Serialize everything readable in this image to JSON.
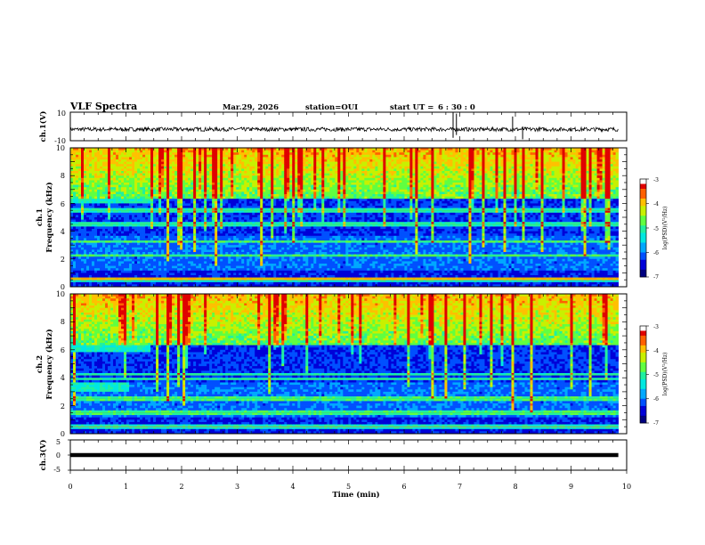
{
  "figure": {
    "title": "VLF Spectra",
    "date": "Mar.29, 2026",
    "station": "station=OUI",
    "start_label": "start  UT =",
    "start_time": "6 : 30 : 0"
  },
  "colors": {
    "background": "#ffffff",
    "axis": "#000000",
    "waveform": "#000000",
    "colormap": [
      "#000080",
      "#0000d8",
      "#0050ff",
      "#00a8ff",
      "#00e8e0",
      "#20f0a0",
      "#60ff40",
      "#c8f000",
      "#ffc000",
      "#ff6000",
      "#e00000",
      "#ffffff"
    ]
  },
  "chart_data": [
    {
      "type": "line",
      "name": "ch1-waveform",
      "ylabel": "ch.1(V)",
      "ylim": [
        -10,
        10
      ],
      "yticks": [
        "10",
        "-10"
      ],
      "xlim": [
        0,
        10
      ],
      "baseline": -2,
      "noise_amplitude": 1.4,
      "spikes": [
        {
          "t": 6.88,
          "lo": -8,
          "hi": 10
        },
        {
          "t": 6.94,
          "lo": -6,
          "hi": 9
        },
        {
          "t": 7.95,
          "lo": -4,
          "hi": 7
        },
        {
          "t": 8.13,
          "lo": -9,
          "hi": 0
        }
      ]
    },
    {
      "type": "heatmap",
      "name": "ch1-spectrogram",
      "ylabel_channel": "ch.1",
      "ylabel": "Frequency (kHz)",
      "ylim": [
        0,
        10
      ],
      "yticks": [
        "0",
        "2",
        "4",
        "6",
        "8",
        "10"
      ],
      "xlim": [
        0,
        9.85
      ],
      "value_label": "log(PSD)(V²/Hz)",
      "value_range": [
        -7,
        -3
      ],
      "colorbar_ticks": [
        "-3",
        "-4",
        "-5",
        "-6",
        "-7"
      ],
      "strong_lines_khz": [
        0.5,
        0.6,
        2.2,
        3.3,
        4.5,
        5.5
      ],
      "noise_band_khz": [
        6.0,
        6.3
      ],
      "noise_band_end_min": 1.45,
      "impulse_density": "high"
    },
    {
      "type": "heatmap",
      "name": "ch2-spectrogram",
      "ylabel_channel": "ch.2",
      "ylabel": "Frequency (kHz)",
      "ylim": [
        0,
        10
      ],
      "yticks": [
        "0",
        "2",
        "4",
        "6",
        "8",
        "10"
      ],
      "xlim": [
        0,
        9.85
      ],
      "value_label": "log(PSD)(V²/Hz)",
      "value_range": [
        -7,
        -3
      ],
      "colorbar_ticks": [
        "-3",
        "-4",
        "-5",
        "-6",
        "-7"
      ],
      "strong_lines_khz": [
        0.5,
        1.5,
        2.5,
        3.9,
        4.2
      ],
      "noise_band_khz": [
        5.9,
        6.3
      ],
      "noise_band_end_min": 1.45,
      "noise_band2_khz": [
        3.0,
        3.7
      ],
      "noise_band2_end_min": 1.05,
      "impulse_density": "high"
    },
    {
      "type": "line",
      "name": "ch3-waveform",
      "ylabel": "ch.3(V)",
      "ylim": [
        -5,
        5
      ],
      "yticks": [
        "5",
        "0",
        "-5"
      ],
      "xlim": [
        0,
        9.85
      ],
      "baseline": 0,
      "flat": true,
      "xlabel": "Time (min)",
      "xticks": [
        "0",
        "1",
        "2",
        "3",
        "4",
        "5",
        "6",
        "7",
        "8",
        "9",
        "10"
      ]
    }
  ]
}
